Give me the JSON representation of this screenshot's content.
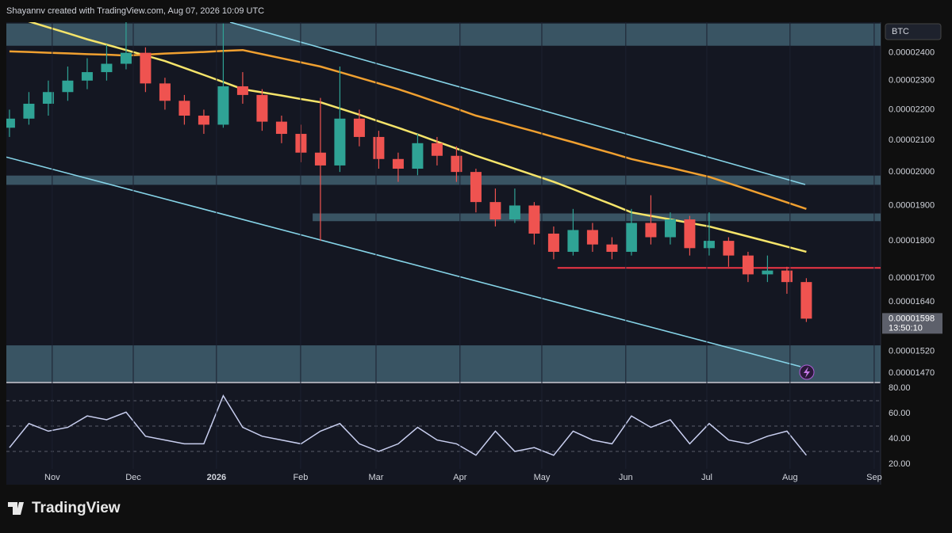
{
  "header": "Shayannv created with TradingView.com, Aug 07, 2026 10:09 UTC",
  "brand": "TradingView",
  "chart_data": {
    "type": "candlestick",
    "symbol_label": "BTC",
    "countdown": "13:50:10",
    "log_scale": true,
    "colors": {
      "up": "#2fa395",
      "down": "#ef5350"
    },
    "open": [
      2.14e-05,
      2.17e-05,
      2.22e-05,
      2.26e-05,
      2.3e-05,
      2.33e-05,
      2.36e-05,
      2.4e-05,
      2.29e-05,
      2.23e-05,
      2.18e-05,
      2.15e-05,
      2.28e-05,
      2.25e-05,
      2.16e-05,
      2.12e-05,
      2.06e-05,
      2.02e-05,
      2.17e-05,
      2.11e-05,
      2.04e-05,
      2.01e-05,
      2.09e-05,
      2.05e-05,
      2e-05,
      1.91e-05,
      1.86e-05,
      1.9e-05,
      1.82e-05,
      1.77e-05,
      1.83e-05,
      1.79e-05,
      1.77e-05,
      1.85e-05,
      1.81e-05,
      1.86e-05,
      1.78e-05,
      1.8e-05,
      1.76e-05,
      1.71e-05,
      1.72e-05,
      1.69e-05
    ],
    "high": [
      2.2e-05,
      2.26e-05,
      2.3e-05,
      2.35e-05,
      2.38e-05,
      2.43e-05,
      2.515e-05,
      2.42e-05,
      2.31e-05,
      2.25e-05,
      2.2e-05,
      2.51e-05,
      2.33e-05,
      2.27e-05,
      2.18e-05,
      2.15e-05,
      2.24e-05,
      2.35e-05,
      2.2e-05,
      2.13e-05,
      2.06e-05,
      2.12e-05,
      2.11e-05,
      2.08e-05,
      2.01e-05,
      1.95e-05,
      1.95e-05,
      1.91e-05,
      1.84e-05,
      1.89e-05,
      1.85e-05,
      1.81e-05,
      1.89e-05,
      1.93e-05,
      1.88e-05,
      1.87e-05,
      1.88e-05,
      1.81e-05,
      1.77e-05,
      1.76e-05,
      1.73e-05,
      1.7e-05
    ],
    "low": [
      2.11e-05,
      2.15e-05,
      2.18e-05,
      2.23e-05,
      2.27e-05,
      2.3e-05,
      2.34e-05,
      2.26e-05,
      2.2e-05,
      2.15e-05,
      2.12e-05,
      2.14e-05,
      2.22e-05,
      2.13e-05,
      2.09e-05,
      2.03e-05,
      1.8e-05,
      2e-05,
      2.08e-05,
      2.01e-05,
      1.97e-05,
      1.99e-05,
      2.02e-05,
      1.97e-05,
      1.88e-05,
      1.84e-05,
      1.85e-05,
      1.79e-05,
      1.75e-05,
      1.76e-05,
      1.77e-05,
      1.75e-05,
      1.76e-05,
      1.79e-05,
      1.79e-05,
      1.76e-05,
      1.76e-05,
      1.73e-05,
      1.69e-05,
      1.69e-05,
      1.66e-05,
      1.59e-05
    ],
    "close": [
      2.17e-05,
      2.22e-05,
      2.26e-05,
      2.3e-05,
      2.33e-05,
      2.36e-05,
      2.4e-05,
      2.29e-05,
      2.23e-05,
      2.18e-05,
      2.15e-05,
      2.28e-05,
      2.25e-05,
      2.16e-05,
      2.12e-05,
      2.06e-05,
      2.02e-05,
      2.17e-05,
      2.11e-05,
      2.04e-05,
      2.01e-05,
      2.09e-05,
      2.05e-05,
      2e-05,
      1.91e-05,
      1.86e-05,
      1.9e-05,
      1.82e-05,
      1.77e-05,
      1.83e-05,
      1.79e-05,
      1.77e-05,
      1.85e-05,
      1.81e-05,
      1.86e-05,
      1.78e-05,
      1.8e-05,
      1.76e-05,
      1.71e-05,
      1.72e-05,
      1.69e-05,
      1.598e-05
    ],
    "moving_averages": [
      {
        "color": "#f5e46a",
        "values": [
          2.54e-05,
          2.518e-05,
          2.495e-05,
          2.473e-05,
          2.45e-05,
          2.43e-05,
          2.41e-05,
          2.39e-05,
          2.37e-05,
          2.345e-05,
          2.32e-05,
          2.295e-05,
          2.27e-05,
          2.259e-05,
          2.248e-05,
          2.236e-05,
          2.225e-05,
          2.204e-05,
          2.183e-05,
          2.161e-05,
          2.14e-05,
          2.118e-05,
          2.095e-05,
          2.073e-05,
          2.05e-05,
          2.03e-05,
          2.01e-05,
          1.99e-05,
          1.97e-05,
          1.948e-05,
          1.925e-05,
          1.903e-05,
          1.88e-05,
          1.87e-05,
          1.86e-05,
          1.85e-05,
          1.84e-05,
          1.826e-05,
          1.812e-05,
          1.798e-05,
          1.784e-05,
          1.77e-05
        ]
      },
      {
        "color": "#f0a030",
        "values": [
          2.405e-05,
          2.403e-05,
          2.4e-05,
          2.398e-05,
          2.395e-05,
          2.393e-05,
          2.39e-05,
          2.393e-05,
          2.397e-05,
          2.4e-05,
          2.403e-05,
          2.407e-05,
          2.41e-05,
          2.395e-05,
          2.38e-05,
          2.365e-05,
          2.35e-05,
          2.33e-05,
          2.31e-05,
          2.29e-05,
          2.27e-05,
          2.248e-05,
          2.225e-05,
          2.203e-05,
          2.18e-05,
          2.163e-05,
          2.145e-05,
          2.128e-05,
          2.11e-05,
          2.093e-05,
          2.075e-05,
          2.058e-05,
          2.04e-05,
          2.026e-05,
          2.013e-05,
          1.999e-05,
          1.985e-05,
          1.966e-05,
          1.947e-05,
          1.928e-05,
          1.909e-05,
          1.89e-05
        ]
      }
    ],
    "zones": [
      {
        "low": 2.426e-05,
        "high": 2.51e-05
      },
      {
        "low": 1.961e-05,
        "high": 1.989e-05
      },
      {
        "low": 1.855e-05,
        "high": 1.877e-05,
        "from": 15.6
      },
      {
        "low": 1.451e-05,
        "high": 1.534e-05
      }
    ],
    "support": {
      "value": 1.727e-05,
      "from": 28.2,
      "color": "#f23645"
    },
    "channels": [
      {
        "x": [
          11.35,
          40.94
        ],
        "values": [
          2.515e-05,
          1.962e-05
        ]
      },
      {
        "x": [
          -0.16,
          40.7
        ],
        "values": [
          2.046e-05,
          1.485e-05
        ]
      }
    ],
    "ylim": [
      1.451e-05,
      2.515e-05
    ],
    "yticks": [
      {
        "value": 2.4e-05,
        "label": "0.00002400"
      },
      {
        "value": 2.3e-05,
        "label": "0.00002300"
      },
      {
        "value": 2.2e-05,
        "label": "0.00002200"
      },
      {
        "value": 2.1e-05,
        "label": "0.00002100"
      },
      {
        "value": 2e-05,
        "label": "0.00002000"
      },
      {
        "value": 1.9e-05,
        "label": "0.00001900"
      },
      {
        "value": 1.8e-05,
        "label": "0.00001800"
      },
      {
        "value": 1.7e-05,
        "label": "0.00001700"
      },
      {
        "value": 1.64e-05,
        "label": "0.00001640"
      },
      {
        "value": 1.52e-05,
        "label": "0.00001520"
      },
      {
        "value": 1.47e-05,
        "label": "0.00001470"
      }
    ],
    "xlim": [
      -0.16,
      44.82
    ],
    "xticks": [
      {
        "value": 2.2,
        "label": "Nov"
      },
      {
        "value": 6.37,
        "label": "Dec"
      },
      {
        "value": 10.65,
        "label": "2026"
      },
      {
        "value": 14.98,
        "label": "Feb"
      },
      {
        "value": 18.86,
        "label": "Mar"
      },
      {
        "value": 23.18,
        "label": "Apr"
      },
      {
        "value": 27.39,
        "label": "May"
      },
      {
        "value": 31.71,
        "label": "Jun"
      },
      {
        "value": 35.88,
        "label": "Jul"
      },
      {
        "value": 40.16,
        "label": "Aug"
      },
      {
        "value": 44.49,
        "label": "Sep"
      }
    ],
    "rsi": {
      "color": "#c9cff0",
      "values": [
        33,
        52,
        46,
        49,
        58,
        55,
        61,
        42,
        39,
        36,
        36,
        74,
        49,
        42,
        39,
        36,
        46,
        52,
        36,
        30,
        36,
        49,
        39,
        36,
        27,
        46,
        30,
        33,
        27,
        46,
        39,
        36,
        58,
        49,
        55,
        36,
        52,
        39,
        36,
        42,
        46,
        27
      ],
      "ylim": [
        16.25,
        83.75
      ],
      "levels": [
        70,
        50,
        30
      ],
      "yticks": [
        {
          "value": 80,
          "label": "80.00"
        },
        {
          "value": 60,
          "label": "60.00"
        },
        {
          "value": 40,
          "label": "40.00"
        },
        {
          "value": 20,
          "label": "20.00"
        }
      ]
    }
  }
}
